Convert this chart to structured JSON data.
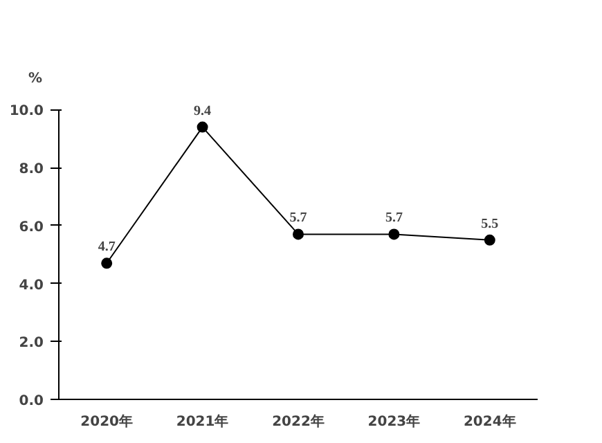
{
  "chart_data": {
    "type": "line",
    "ylabel": "%",
    "categories": [
      "2020年",
      "2021年",
      "2022年",
      "2023年",
      "2024年"
    ],
    "series": [
      {
        "color": "#000000",
        "values": [
          4.7,
          9.4,
          5.7,
          5.7,
          5.5
        ]
      }
    ],
    "ylim": [
      0,
      10
    ],
    "yticks": [
      {
        "value": 0,
        "label": "0.0"
      },
      {
        "value": 2,
        "label": "2.0"
      },
      {
        "value": 4,
        "label": "4.0"
      },
      {
        "value": 6,
        "label": "6.0"
      },
      {
        "value": 8,
        "label": "8.0"
      },
      {
        "value": 10,
        "label": "10.0"
      }
    ],
    "grid": false,
    "marker": "circle",
    "line_style": "solid",
    "data_labels": true
  }
}
